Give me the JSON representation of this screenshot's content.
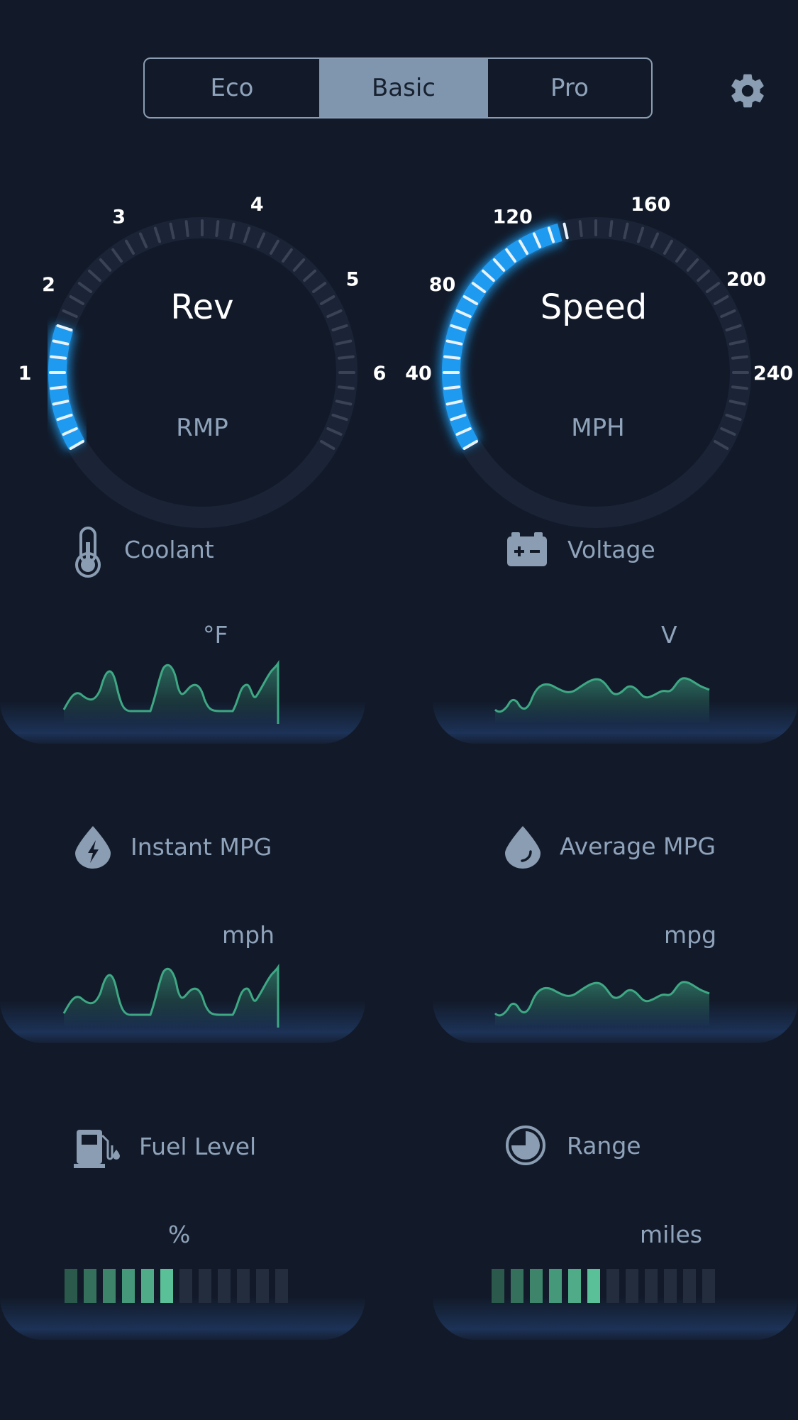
{
  "mode_selector": {
    "options": [
      "Eco",
      "Basic",
      "Pro"
    ],
    "selected": "Basic"
  },
  "settings": {
    "icon": "gear-icon"
  },
  "rev_gauge": {
    "title": "Rev",
    "unit": "RMP",
    "ticks": [
      "1",
      "2",
      "3",
      "4",
      "5",
      "6"
    ],
    "value_fraction": 0.2,
    "accent": "#1e9bf0"
  },
  "speed_gauge": {
    "title": "Speed",
    "unit": "MPH",
    "ticks": [
      "40",
      "80",
      "120",
      "160",
      "200",
      "240"
    ],
    "value_fraction": 0.44,
    "accent": "#1e9bf0"
  },
  "cards": {
    "coolant": {
      "title": "Coolant",
      "unit": "°F",
      "icon": "thermometer-icon"
    },
    "voltage": {
      "title": "Voltage",
      "unit": "V",
      "icon": "battery-icon"
    },
    "instant_mpg": {
      "title": "Instant MPG",
      "unit": "mph",
      "icon": "lightning-drop-icon"
    },
    "average_mpg": {
      "title": "Average MPG",
      "unit": "mpg",
      "icon": "drop-icon"
    },
    "fuel_level": {
      "title": "Fuel Level",
      "unit": "%",
      "icon": "fuel-pump-icon",
      "level_segments_filled": 6,
      "level_segments_total": 12
    },
    "range": {
      "title": "Range",
      "unit": "miles",
      "icon": "pie-gauge-icon",
      "level_segments_filled": 6,
      "level_segments_total": 12
    }
  },
  "colors": {
    "background": "#121a29",
    "text_muted": "#8fa3bb",
    "chart_green": "#3ea884",
    "bar_filled": "#55b98f",
    "bar_empty": "#232d3e"
  }
}
